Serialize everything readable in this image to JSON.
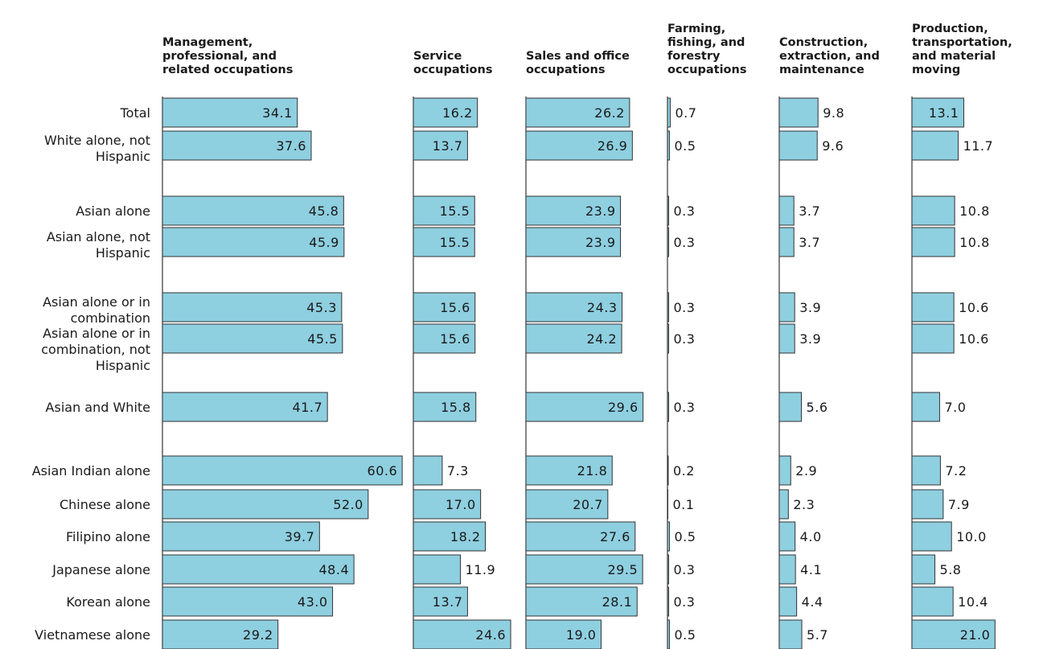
{
  "chart_data": {
    "type": "bar",
    "color": "#8ecfe0",
    "categories": [
      "Total",
      "White alone, not Hispanic",
      "Asian alone",
      "Asian alone, not Hispanic",
      "Asian alone or in combination",
      "Asian alone or in combination, not Hispanic",
      "Asian and White",
      "Asian Indian alone",
      "Chinese alone",
      "Filipino alone",
      "Japanese alone",
      "Korean alone",
      "Vietnamese alone"
    ],
    "series": [
      {
        "name": "Management, professional, and related occupations",
        "values": [
          34.1,
          37.6,
          45.8,
          45.9,
          45.3,
          45.5,
          41.7,
          60.6,
          52.0,
          39.7,
          48.4,
          43.0,
          29.2
        ],
        "value_labels": [
          "34.1",
          "37.6",
          "45.8",
          "45.9",
          "45.3",
          "45.5",
          "41.7",
          "60.6",
          "52.0",
          "39.7",
          "48.4",
          "43.0",
          "29.2"
        ]
      },
      {
        "name": "Service occupations",
        "values": [
          16.2,
          13.7,
          15.5,
          15.5,
          15.6,
          15.6,
          15.8,
          7.3,
          17.0,
          18.2,
          11.9,
          13.7,
          24.6
        ],
        "value_labels": [
          "16.2",
          "13.7",
          "15.5",
          "15.5",
          "15.6",
          "15.6",
          "15.8",
          "7.3",
          "17.0",
          "18.2",
          "11.9",
          "13.7",
          "24.6"
        ]
      },
      {
        "name": "Sales and office occupations",
        "values": [
          26.2,
          26.9,
          23.9,
          23.9,
          24.3,
          24.2,
          29.6,
          21.8,
          20.7,
          27.6,
          29.5,
          28.1,
          19.0
        ],
        "value_labels": [
          "26.2",
          "26.9",
          "23.9",
          "23.9",
          "24.3",
          "24.2",
          "29.6",
          "21.8",
          "20.7",
          "27.6",
          "29.5",
          "28.1",
          "19.0"
        ]
      },
      {
        "name": "Farming, fishing, and forestry occupations",
        "values": [
          0.7,
          0.5,
          0.3,
          0.3,
          0.3,
          0.3,
          0.3,
          0.2,
          0.1,
          0.5,
          0.3,
          0.3,
          0.5
        ],
        "value_labels": [
          "0.7",
          "0.5",
          "0.3",
          "0.3",
          "0.3",
          "0.3",
          "0.3",
          "0.2",
          "0.1",
          "0.5",
          "0.3",
          "0.3",
          "0.5"
        ]
      },
      {
        "name": "Construction, extraction, and maintenance",
        "values": [
          9.8,
          9.6,
          3.7,
          3.7,
          3.9,
          3.9,
          5.6,
          2.9,
          2.3,
          4.0,
          4.1,
          4.4,
          5.7
        ],
        "value_labels": [
          "9.8",
          "9.6",
          "3.7",
          "3.7",
          "3.9",
          "3.9",
          "5.6",
          "2.9",
          "2.3",
          "4.0",
          "4.1",
          "4.4",
          "5.7"
        ]
      },
      {
        "name": "Production, transportation, and material moving",
        "values": [
          13.1,
          11.7,
          10.8,
          10.8,
          10.6,
          10.6,
          7.0,
          7.2,
          7.9,
          10.0,
          5.8,
          10.4,
          21.0
        ],
        "value_labels": [
          "13.1",
          "11.7",
          "10.8",
          "10.8",
          "10.6",
          "10.6",
          "7.0",
          "7.2",
          "7.9",
          "10.0",
          "5.8",
          "10.4",
          "21.0"
        ]
      }
    ]
  }
}
